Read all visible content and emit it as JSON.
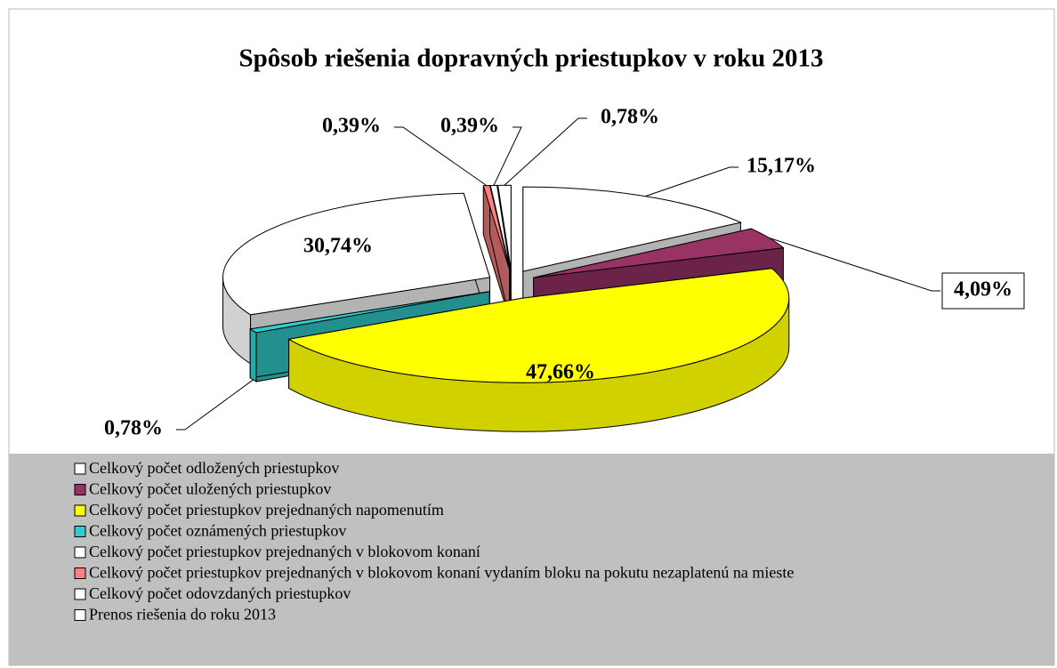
{
  "chart_data": {
    "type": "pie3d",
    "title": "Spôsob riešenia dopravných priestupkov v roku 2013",
    "categories": [
      "Celkový počet odložených priestupkov",
      "Celkový počet uložených priestupkov",
      "Celkový počet priestupkov prejednaných napomenutím",
      "Celkový počet oznámených priestupkov",
      "Celkový počet priestupkov prejednaných v blokovom konaní",
      "Celkový počet priestupkov prejednaných v blokovom konaní vydaním bloku na pokutu nezaplatenú na mieste",
      "Celkový počet odovzdaných priestupkov",
      "Prenos riešenia do roku 2013"
    ],
    "values": [
      15.17,
      4.09,
      47.66,
      0.78,
      30.74,
      0.39,
      0.39,
      0.78
    ],
    "value_labels": [
      "15,17%",
      "4,09%",
      "47,66%",
      "0,78%",
      "30,74%",
      "0,39%",
      "0,39%",
      "0,78%"
    ],
    "colors": [
      "#ffffff",
      "#993366",
      "#ffff00",
      "#33cccc",
      "#ffffff",
      "#ff8080",
      "#ffffff",
      "#ffffff"
    ],
    "legend": "bottom"
  }
}
